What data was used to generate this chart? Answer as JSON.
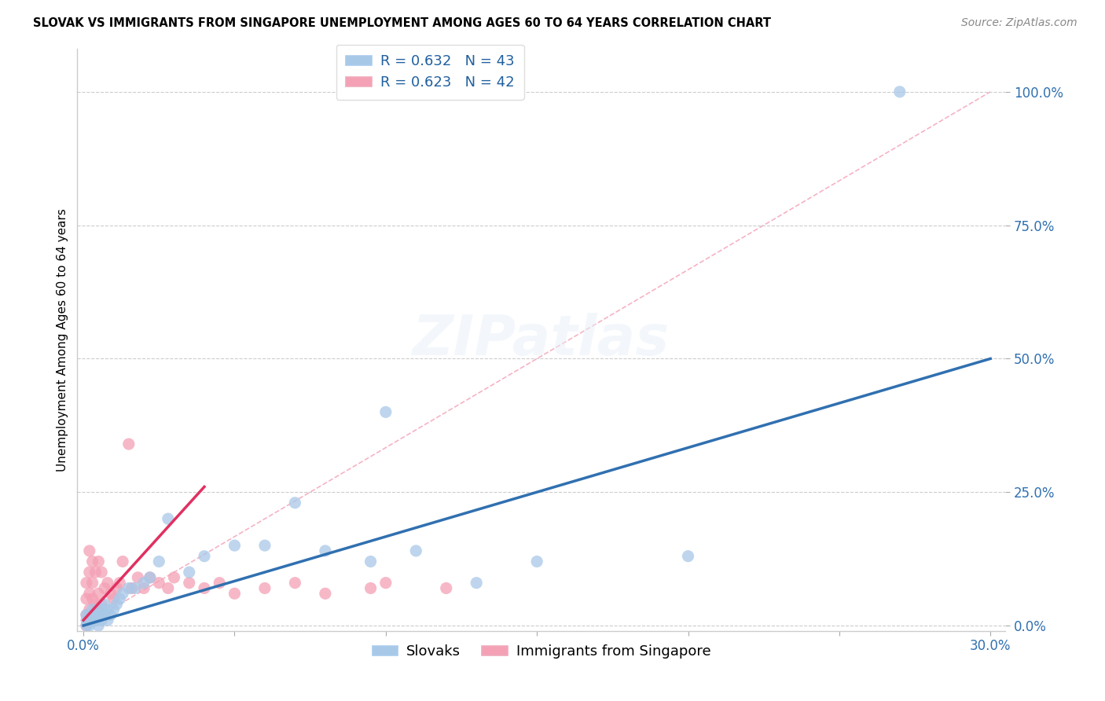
{
  "title": "SLOVAK VS IMMIGRANTS FROM SINGAPORE UNEMPLOYMENT AMONG AGES 60 TO 64 YEARS CORRELATION CHART",
  "source": "Source: ZipAtlas.com",
  "ylabel": "Unemployment Among Ages 60 to 64 years",
  "xlim": [
    -0.002,
    0.305
  ],
  "ylim": [
    -0.01,
    1.08
  ],
  "yticks": [
    0.0,
    0.25,
    0.5,
    0.75,
    1.0
  ],
  "ytick_labels": [
    "0.0%",
    "25.0%",
    "50.0%",
    "75.0%",
    "100.0%"
  ],
  "xticks": [
    0.0,
    0.05,
    0.1,
    0.15,
    0.2,
    0.25,
    0.3
  ],
  "xtick_labels": [
    "0.0%",
    "",
    "",
    "",
    "",
    "",
    "30.0%"
  ],
  "legend1_label": "R = 0.632   N = 43",
  "legend2_label": "R = 0.623   N = 42",
  "legend_bottom_label1": "Slovaks",
  "legend_bottom_label2": "Immigrants from Singapore",
  "blue_scatter_color": "#a8c8e8",
  "pink_scatter_color": "#f4a0b5",
  "blue_line_color": "#3070b0",
  "pink_line_color": "#e03060",
  "ref_line_color": "#f4a0b5",
  "scatter_alpha": 0.75,
  "scatter_size": 120,
  "slovak_x": [
    0.001,
    0.001,
    0.001,
    0.002,
    0.002,
    0.002,
    0.003,
    0.003,
    0.003,
    0.004,
    0.004,
    0.005,
    0.005,
    0.006,
    0.006,
    0.007,
    0.007,
    0.008,
    0.008,
    0.009,
    0.01,
    0.011,
    0.012,
    0.013,
    0.015,
    0.017,
    0.02,
    0.022,
    0.025,
    0.028,
    0.035,
    0.04,
    0.05,
    0.06,
    0.07,
    0.08,
    0.095,
    0.1,
    0.11,
    0.13,
    0.15,
    0.2,
    0.27
  ],
  "slovak_y": [
    0.0,
    0.01,
    0.02,
    0.0,
    0.01,
    0.02,
    0.01,
    0.02,
    0.03,
    0.01,
    0.02,
    0.0,
    0.02,
    0.01,
    0.03,
    0.02,
    0.04,
    0.01,
    0.03,
    0.02,
    0.03,
    0.04,
    0.05,
    0.06,
    0.07,
    0.07,
    0.08,
    0.09,
    0.12,
    0.2,
    0.1,
    0.13,
    0.15,
    0.15,
    0.23,
    0.14,
    0.12,
    0.4,
    0.14,
    0.08,
    0.12,
    0.13,
    1.0
  ],
  "singapore_x": [
    0.001,
    0.001,
    0.001,
    0.001,
    0.002,
    0.002,
    0.002,
    0.002,
    0.003,
    0.003,
    0.003,
    0.004,
    0.004,
    0.005,
    0.005,
    0.006,
    0.006,
    0.007,
    0.008,
    0.009,
    0.01,
    0.011,
    0.012,
    0.013,
    0.015,
    0.016,
    0.018,
    0.02,
    0.022,
    0.025,
    0.028,
    0.03,
    0.035,
    0.04,
    0.045,
    0.05,
    0.06,
    0.07,
    0.08,
    0.095,
    0.1,
    0.12
  ],
  "singapore_y": [
    0.0,
    0.02,
    0.05,
    0.08,
    0.03,
    0.06,
    0.1,
    0.14,
    0.05,
    0.08,
    0.12,
    0.04,
    0.1,
    0.06,
    0.12,
    0.04,
    0.1,
    0.07,
    0.08,
    0.06,
    0.05,
    0.07,
    0.08,
    0.12,
    0.34,
    0.07,
    0.09,
    0.07,
    0.09,
    0.08,
    0.07,
    0.09,
    0.08,
    0.07,
    0.08,
    0.06,
    0.07,
    0.08,
    0.06,
    0.07,
    0.08,
    0.07
  ],
  "blue_line_x": [
    0.0,
    0.3
  ],
  "blue_line_y": [
    0.0,
    0.5
  ],
  "pink_line_x": [
    0.0,
    0.04
  ],
  "pink_line_y": [
    0.01,
    0.26
  ],
  "ref_line_x": [
    0.0,
    0.3
  ],
  "ref_line_y": [
    0.0,
    1.0
  ]
}
